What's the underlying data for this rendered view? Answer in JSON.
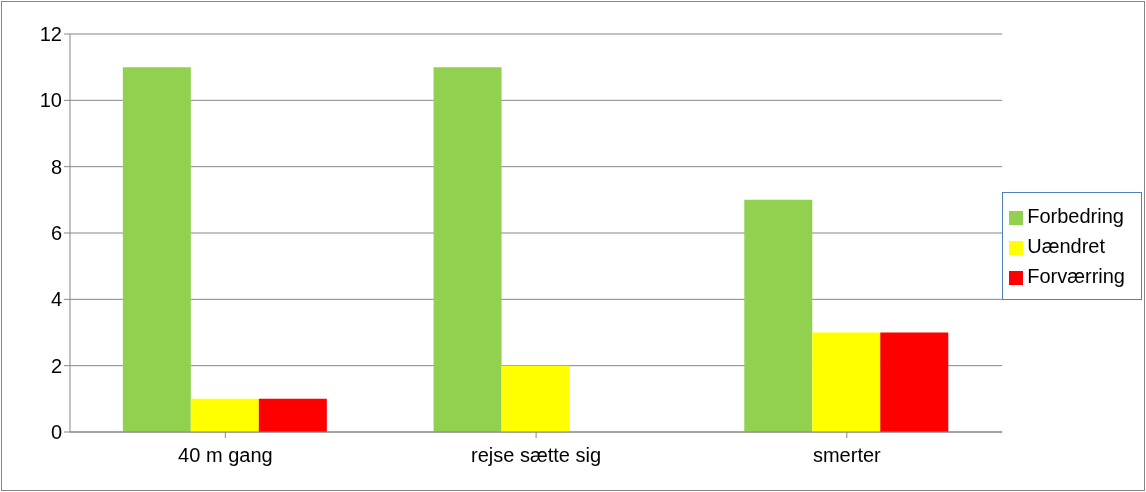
{
  "chart_data": {
    "type": "bar",
    "categories": [
      "40 m gang",
      "rejse sætte sig",
      "smerter"
    ],
    "series": [
      {
        "name": "Forbedring",
        "color": "#92d050",
        "values": [
          11,
          11,
          7
        ]
      },
      {
        "name": "Uændret",
        "color": "#ffff00",
        "values": [
          1,
          2,
          3
        ]
      },
      {
        "name": "Forværring",
        "color": "#ff0000",
        "values": [
          1,
          0,
          3
        ]
      }
    ],
    "ylim": [
      0,
      12
    ],
    "yticks": [
      0,
      2,
      4,
      6,
      8,
      10,
      12
    ],
    "grid": "y",
    "legend": "right"
  }
}
